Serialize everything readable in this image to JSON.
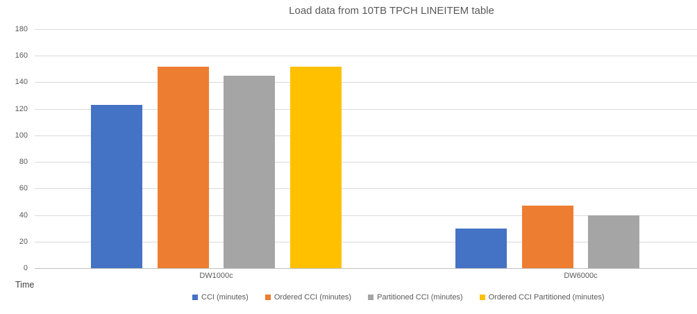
{
  "chart_data": {
    "type": "bar",
    "title": "Load data from 10TB TPCH LINEITEM table",
    "axis_title": "Time",
    "categories": [
      "DW1000c",
      "DW6000c"
    ],
    "series": [
      {
        "name": "CCI (minutes)",
        "color": "#4472C4",
        "values": [
          123,
          30
        ]
      },
      {
        "name": "Ordered CCI (minutes)",
        "color": "#ED7D31",
        "values": [
          152,
          47
        ]
      },
      {
        "name": "Partitioned CCI (minutes)",
        "color": "#A5A5A5",
        "values": [
          145,
          40
        ]
      },
      {
        "name": "Ordered CCI Partitioned (minutes)",
        "color": "#FFC000",
        "values": [
          152,
          null
        ]
      }
    ],
    "ylim": [
      0,
      180
    ],
    "ytick_step": 20,
    "ytick_labels": [
      "0",
      "20",
      "40",
      "60",
      "80",
      "100",
      "120",
      "140",
      "160",
      "180"
    ],
    "grid": true,
    "legend_position": "bottom",
    "background_color": "#FFFFFF",
    "gridline_color": "#D9D9D9",
    "axis_line_color": "#BFBFBF",
    "text_color": "#595959"
  }
}
